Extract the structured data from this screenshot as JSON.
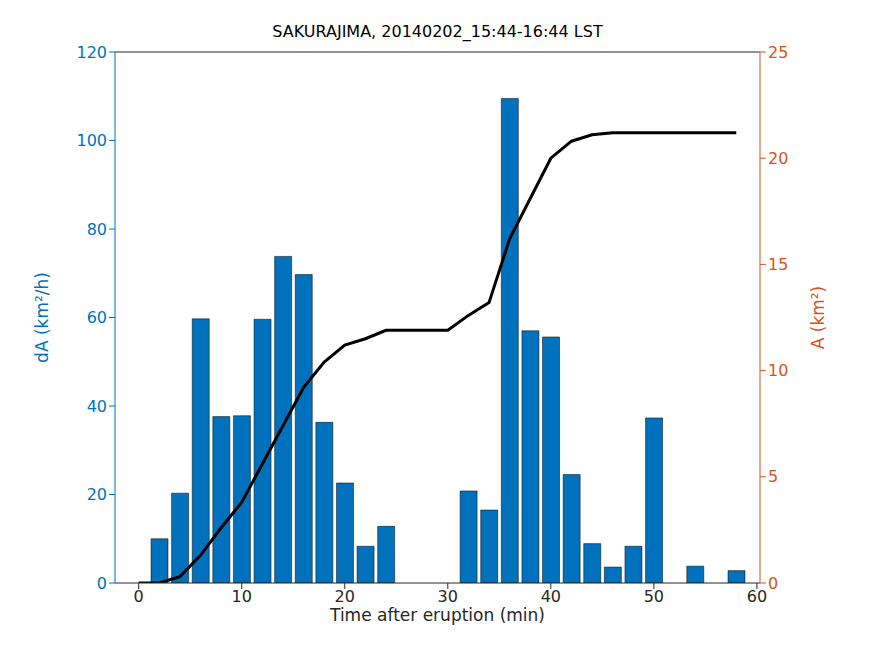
{
  "chart_data": {
    "type": "bar",
    "title": "SAKURAJIMA, 20140202_15:44-16:44 LST",
    "x_label": "Time after eruption (min)",
    "y_label": "dA (km²/h)",
    "y2_label": "A (km²)",
    "x": [
      0,
      2,
      4,
      6,
      8,
      10,
      12,
      14,
      16,
      18,
      20,
      22,
      24,
      26,
      28,
      30,
      32,
      34,
      36,
      38,
      40,
      42,
      44,
      46,
      48,
      50,
      52,
      54,
      56,
      58
    ],
    "series": [
      {
        "name": "dA",
        "type": "bar",
        "color": "#0072BD",
        "values": [
          0,
          10,
          20.3,
          59.7,
          37.6,
          37.8,
          59.6,
          73.8,
          69.7,
          36.3,
          22.6,
          8.3,
          12.8,
          0,
          0,
          0,
          20.8,
          16.5,
          109.5,
          57,
          55.6,
          24.5,
          8.9,
          3.6,
          8.3,
          37.3,
          0,
          3.8,
          0,
          2.8
        ]
      },
      {
        "name": "A",
        "type": "line",
        "color": "#000000",
        "axis": "y2",
        "values": [
          0,
          0,
          0.3,
          1.3,
          2.6,
          3.8,
          5.6,
          7.4,
          9.2,
          10.4,
          11.2,
          11.5,
          11.9,
          11.9,
          11.9,
          11.9,
          12.6,
          13.2,
          16.2,
          18.1,
          20.0,
          20.8,
          21.1,
          21.2,
          21.2,
          21.2,
          21.2,
          21.2,
          21.2,
          21.2
        ]
      }
    ],
    "xlim": [
      -2.3,
      60.3
    ],
    "xticks": [
      0,
      10,
      20,
      30,
      40,
      50,
      60
    ],
    "ylim": [
      0,
      120
    ],
    "yticks": [
      0,
      20,
      40,
      60,
      80,
      100,
      120
    ],
    "y2lim": [
      0,
      25
    ],
    "y2ticks": [
      0,
      5,
      10,
      15,
      20,
      25
    ],
    "grid": false
  }
}
